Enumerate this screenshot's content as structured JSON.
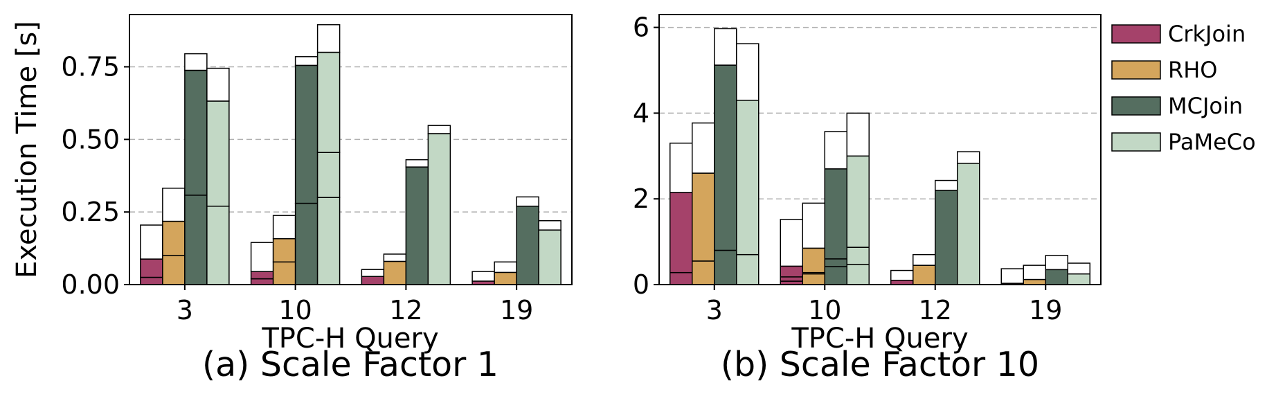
{
  "colors": {
    "CrkJoin": "#a5426a",
    "RHO": "#d4a55c",
    "MCJoin": "#556e60",
    "PaMeCo": "#c2d8c5",
    "frame": "#000000",
    "grid": "#b0b0b0"
  },
  "legend": {
    "placement": "right-outside-top",
    "entries": [
      "CrkJoin",
      "RHO",
      "MCJoin",
      "PaMeCo"
    ]
  },
  "chart_data": [
    {
      "type": "bar",
      "stacked": true,
      "caption": "(a) Scale Factor 1",
      "xlabel": "TPC-H Query",
      "ylabel": "Execution Time [s]",
      "ylim": [
        0,
        0.93
      ],
      "yticks": [
        0,
        0.25,
        0.5,
        0.75
      ],
      "ytick_labels": [
        "0.00",
        "0.25",
        "0.50",
        "0.75"
      ],
      "grid": "horizontal dashed",
      "categories": [
        "3",
        "10",
        "12",
        "19"
      ],
      "series": [
        {
          "name": "CrkJoin",
          "segments": [
            [
              0.025,
              0.088,
              0.205
            ],
            [
              0.02,
              0.045,
              0.145
            ],
            [
              0.028,
              0.028,
              0.052
            ],
            [
              0.012,
              0.012,
              0.045
            ]
          ]
        },
        {
          "name": "RHO",
          "segments": [
            [
              0.1,
              0.218,
              0.332
            ],
            [
              0.078,
              0.158,
              0.238
            ],
            [
              0.08,
              0.08,
              0.105
            ],
            [
              0.042,
              0.042,
              0.078
            ]
          ]
        },
        {
          "name": "MCJoin",
          "segments": [
            [
              0.308,
              0.738,
              0.795
            ],
            [
              0.28,
              0.755,
              0.785
            ],
            [
              0.405,
              0.405,
              0.43
            ],
            [
              0.27,
              0.27,
              0.302
            ]
          ]
        },
        {
          "name": "PaMeCo",
          "segments": [
            [
              0.27,
              0.632,
              0.745
            ],
            [
              0.3,
              0.455,
              0.8,
              0.895
            ],
            [
              0.52,
              0.52,
              0.548
            ],
            [
              0.188,
              0.188,
              0.22
            ]
          ]
        }
      ]
    },
    {
      "type": "bar",
      "stacked": true,
      "caption": "(b) Scale Factor 10",
      "xlabel": "TPC-H Query",
      "ylabel": "",
      "ylim": [
        0,
        6.3
      ],
      "yticks": [
        0,
        2,
        4,
        6
      ],
      "ytick_labels": [
        "0",
        "2",
        "4",
        "6"
      ],
      "grid": "horizontal dashed",
      "categories": [
        "3",
        "10",
        "12",
        "19"
      ],
      "series": [
        {
          "name": "CrkJoin",
          "segments": [
            [
              0.28,
              2.15,
              3.3
            ],
            [
              0.08,
              0.18,
              0.43,
              1.52
            ],
            [
              0.1,
              0.1,
              0.33
            ],
            [
              0.03,
              0.03,
              0.37
            ]
          ]
        },
        {
          "name": "RHO",
          "segments": [
            [
              0.55,
              2.6,
              3.77
            ],
            [
              0.25,
              0.28,
              0.85,
              1.9
            ],
            [
              0.45,
              0.45,
              0.7
            ],
            [
              0.12,
              0.12,
              0.45
            ]
          ]
        },
        {
          "name": "MCJoin",
          "segments": [
            [
              0.8,
              5.12,
              5.97
            ],
            [
              0.42,
              0.6,
              2.7,
              3.57
            ],
            [
              2.2,
              2.2,
              2.43
            ],
            [
              0.35,
              0.35,
              0.68
            ]
          ]
        },
        {
          "name": "PaMeCo",
          "segments": [
            [
              0.7,
              4.3,
              5.62
            ],
            [
              0.47,
              0.87,
              3.0,
              4.0
            ],
            [
              2.83,
              2.83,
              3.1
            ],
            [
              0.25,
              0.25,
              0.5
            ]
          ]
        }
      ]
    }
  ]
}
